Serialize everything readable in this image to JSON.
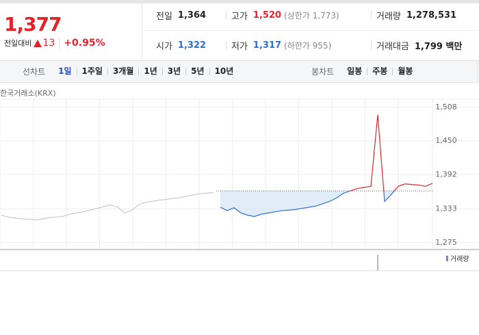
{
  "quote": {
    "price": "1,377",
    "change_label": "전일대비",
    "change": "13",
    "change_rate": "+0.95%"
  },
  "stats": [
    {
      "label": "전일",
      "value": "1,364"
    },
    {
      "label": "고가",
      "value": "1,520",
      "note": "(상한가 1,773)"
    },
    {
      "label": "거래량",
      "value": "1,278,531"
    },
    {
      "label": "시가",
      "value": "1,322"
    },
    {
      "label": "저가",
      "value": "1,317",
      "note": "(하한가 955)"
    },
    {
      "label": "거래대금",
      "value": "1,799 백만"
    }
  ],
  "tabs": {
    "line_label": "선차트",
    "line_periods": [
      "1일",
      "1주일",
      "3개월",
      "1년",
      "3년",
      "5년",
      "10년"
    ],
    "candle_label": "봉차트",
    "candle_periods": [
      "일봉",
      "주봉",
      "월봉"
    ]
  },
  "chart_data": {
    "type": "line",
    "source": "한국거래소(KRX)",
    "ylim": [
      1263,
      1522
    ],
    "yticks": [
      {
        "value": 1275,
        "label": "1,275"
      },
      {
        "value": 1333,
        "label": "1,333"
      },
      {
        "value": 1392,
        "label": "1,392"
      },
      {
        "value": 1450,
        "label": "1,450"
      },
      {
        "value": 1508,
        "label": "1,508"
      }
    ],
    "grid": true,
    "baseline": 1364,
    "series": [
      {
        "color": "#c8c8c8",
        "values": [
          1322,
          1319,
          1317,
          1316,
          1315,
          1314,
          1316,
          1318,
          1319,
          1320,
          1324,
          1326,
          1328,
          1331,
          1334,
          1337,
          1340,
          1336,
          1326,
          1330,
          1340,
          1344,
          1346,
          1348,
          1349,
          1351,
          1352,
          1355,
          1357,
          1359,
          1360,
          1361,
          null,
          null,
          null,
          null,
          null,
          null,
          null,
          null,
          null,
          null,
          null,
          null,
          null,
          null,
          null,
          null,
          null,
          null,
          null,
          null,
          null,
          null,
          null,
          null,
          null,
          null,
          null,
          null,
          null,
          null,
          null,
          null
        ]
      },
      {
        "color": "#e4222b",
        "color_below": "#2a6fd0",
        "values": [
          null,
          null,
          null,
          null,
          null,
          null,
          null,
          null,
          null,
          null,
          null,
          null,
          null,
          null,
          null,
          null,
          null,
          null,
          null,
          null,
          null,
          null,
          null,
          null,
          null,
          null,
          null,
          null,
          null,
          null,
          null,
          null,
          1336,
          1330,
          1335,
          1326,
          1322,
          1320,
          1324,
          1326,
          1328,
          1330,
          1331,
          1332,
          1334,
          1336,
          1338,
          1342,
          1346,
          1352,
          1360,
          1364,
          1368,
          1370,
          1372,
          1495,
          1346,
          1358,
          1372,
          1376,
          1375,
          1374,
          1372,
          1377
        ]
      }
    ],
    "volume": {
      "name": "거래량",
      "color": "#8b7fb8",
      "ylim": [
        0,
        450000
      ],
      "values": [
        null,
        null,
        null,
        null,
        null,
        null,
        null,
        null,
        null,
        null,
        null,
        null,
        null,
        null,
        null,
        null,
        null,
        null,
        null,
        null,
        null,
        null,
        null,
        null,
        null,
        null,
        null,
        null,
        null,
        null,
        null,
        null,
        null,
        null,
        null,
        null,
        null,
        null,
        null,
        null,
        null,
        null,
        null,
        null,
        null,
        null,
        null,
        null,
        null,
        null,
        null,
        null,
        null,
        null,
        null,
        400000,
        null,
        null,
        null,
        null,
        null,
        null,
        null,
        null
      ]
    }
  }
}
